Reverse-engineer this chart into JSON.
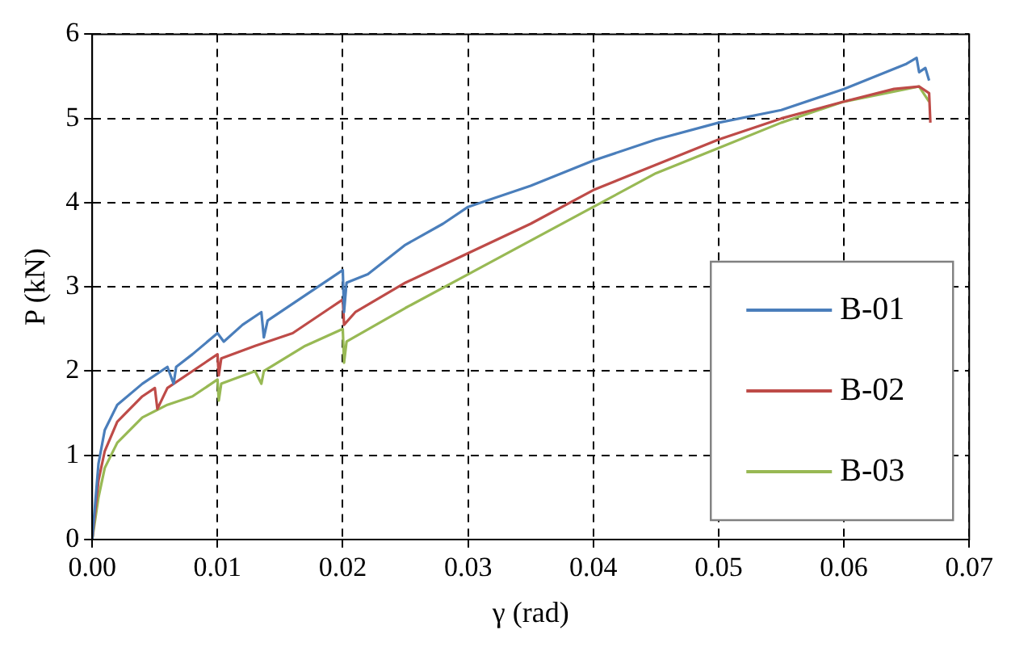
{
  "chart_data": {
    "type": "line",
    "xlabel": "γ (rad)",
    "ylabel": "P (kN)",
    "xlim": [
      0,
      0.07
    ],
    "xticks": [
      {
        "value": 0,
        "label": "0.00"
      },
      {
        "value": 0.01,
        "label": "0.01"
      },
      {
        "value": 0.02,
        "label": "0.02"
      },
      {
        "value": 0.03,
        "label": "0.03"
      },
      {
        "value": 0.04,
        "label": "0.04"
      },
      {
        "value": 0.05,
        "label": "0.05"
      },
      {
        "value": 0.06,
        "label": "0.06"
      },
      {
        "value": 0.07,
        "label": "0.07"
      }
    ],
    "ylim": [
      0,
      6
    ],
    "yticks": [
      0,
      1,
      2,
      3,
      4,
      5,
      6
    ],
    "grid": true,
    "legend": "bottom right",
    "marker": "none",
    "line_style": "solid",
    "series": [
      {
        "name": "B-01",
        "color": "#4a7ebb",
        "x": [
          0,
          0.0005,
          0.001,
          0.002,
          0.004,
          0.006,
          0.0065,
          0.0067,
          0.008,
          0.01,
          0.0105,
          0.012,
          0.0135,
          0.0137,
          0.014,
          0.017,
          0.0195,
          0.02,
          0.0201,
          0.0203,
          0.022,
          0.025,
          0.028,
          0.03,
          0.035,
          0.04,
          0.045,
          0.05,
          0.055,
          0.06,
          0.065,
          0.0658,
          0.066,
          0.0665,
          0.0668
        ],
        "values": [
          0,
          0.9,
          1.3,
          1.6,
          1.85,
          2.05,
          1.85,
          2.05,
          2.2,
          2.45,
          2.35,
          2.55,
          2.7,
          2.4,
          2.6,
          2.9,
          3.15,
          3.2,
          2.7,
          3.05,
          3.15,
          3.5,
          3.75,
          3.95,
          4.2,
          4.5,
          4.75,
          4.95,
          5.1,
          5.35,
          5.65,
          5.72,
          5.55,
          5.6,
          5.45
        ]
      },
      {
        "name": "B-02",
        "color": "#be4b48",
        "x": [
          0,
          0.0005,
          0.001,
          0.002,
          0.004,
          0.005,
          0.0052,
          0.006,
          0.008,
          0.01,
          0.0101,
          0.0103,
          0.013,
          0.016,
          0.019,
          0.02,
          0.0201,
          0.021,
          0.025,
          0.03,
          0.035,
          0.04,
          0.045,
          0.05,
          0.055,
          0.06,
          0.064,
          0.066,
          0.0668,
          0.0669
        ],
        "values": [
          0,
          0.7,
          1.05,
          1.4,
          1.7,
          1.8,
          1.55,
          1.8,
          2.0,
          2.2,
          1.95,
          2.15,
          2.3,
          2.45,
          2.75,
          2.85,
          2.55,
          2.7,
          3.05,
          3.4,
          3.75,
          4.15,
          4.45,
          4.75,
          5.0,
          5.2,
          5.35,
          5.38,
          5.3,
          4.95
        ]
      },
      {
        "name": "B-03",
        "color": "#98b954",
        "x": [
          0,
          0.0005,
          0.001,
          0.002,
          0.004,
          0.006,
          0.008,
          0.01,
          0.0101,
          0.0103,
          0.013,
          0.0135,
          0.0137,
          0.017,
          0.02,
          0.0201,
          0.0203,
          0.025,
          0.03,
          0.035,
          0.04,
          0.045,
          0.05,
          0.055,
          0.06,
          0.065,
          0.066,
          0.0668
        ],
        "values": [
          0,
          0.5,
          0.85,
          1.15,
          1.45,
          1.6,
          1.7,
          1.9,
          1.65,
          1.85,
          2.0,
          1.85,
          2.0,
          2.3,
          2.5,
          2.1,
          2.35,
          2.75,
          3.15,
          3.55,
          3.95,
          4.35,
          4.65,
          4.95,
          5.2,
          5.35,
          5.38,
          5.2
        ]
      }
    ]
  }
}
